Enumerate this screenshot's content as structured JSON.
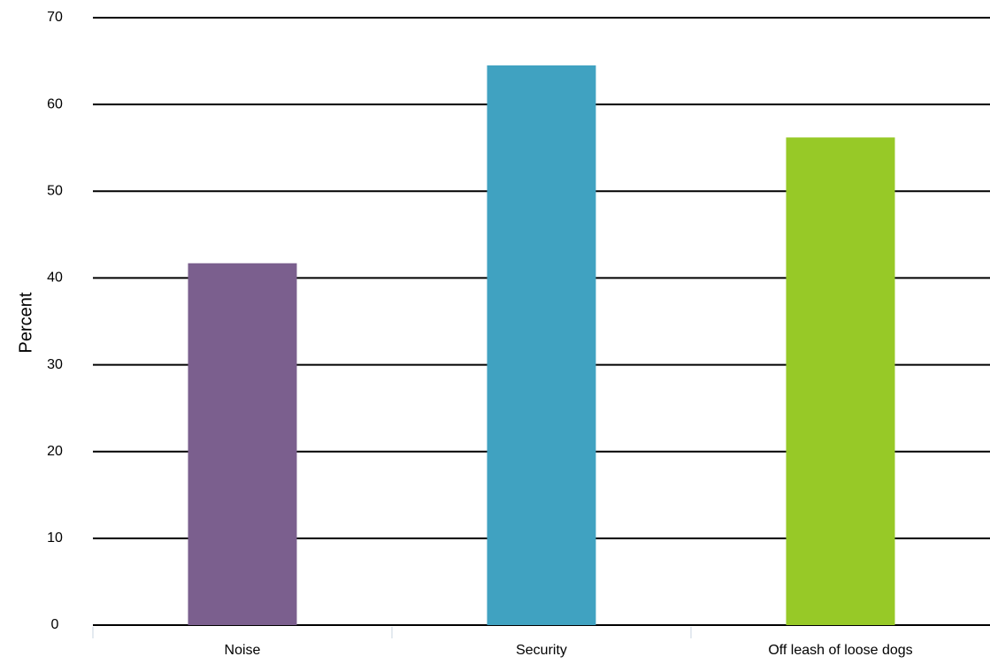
{
  "chart_data": {
    "type": "bar",
    "title": "",
    "xlabel": "",
    "ylabel": "Percent",
    "ylim": [
      0,
      70
    ],
    "yticks": [
      0,
      10,
      20,
      30,
      40,
      50,
      60,
      70
    ],
    "grid": true,
    "legend": "none",
    "categories": [
      "Noise",
      "Security",
      "Off leash of loose dogs"
    ],
    "values": [
      41.7,
      64.5,
      56.2
    ],
    "colors": [
      "#7b5f8e",
      "#40a2c1",
      "#97c927"
    ]
  }
}
